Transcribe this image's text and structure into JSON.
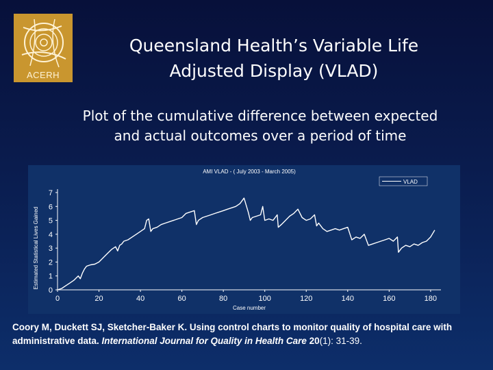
{
  "logo": {
    "text": "ACERH"
  },
  "title": {
    "line1": "Queensland Health’s Variable Life",
    "line2": "Adjusted Display (VLAD)"
  },
  "subtitle": "Plot of the cumulative difference between expected and actual outcomes over a period of time",
  "citation": {
    "authors_title": "Coory M, Duckett SJ, Sketcher-Baker K. Using control charts to monitor quality of hospital care with administrative data. ",
    "journal": "International Journal for Quality in Health Care",
    "volume": "20",
    "issue_pages": "(1): 31-39."
  },
  "colors": {
    "background": "#0a1c4e",
    "chart_bg": "#103168",
    "line": "#ffffff"
  },
  "chart_data": {
    "type": "line",
    "title": "AMI VLAD - ( July 2003 - March 2005)",
    "xlabel": "Case number",
    "ylabel": "Estimated Statistical Lives Gained",
    "xlim": [
      0,
      185
    ],
    "ylim": [
      0,
      7
    ],
    "xticks": [
      0,
      20,
      40,
      60,
      80,
      100,
      120,
      140,
      160,
      180
    ],
    "yticks": [
      0,
      1,
      2,
      3,
      4,
      5,
      6,
      7
    ],
    "legend": "VLAD",
    "legend_position": "top-right",
    "series": [
      {
        "name": "VLAD",
        "x": [
          0,
          2,
          4,
          6,
          8,
          10,
          11,
          12,
          13,
          14,
          16,
          18,
          20,
          22,
          24,
          26,
          28,
          29,
          30,
          31,
          32,
          34,
          36,
          38,
          40,
          42,
          43,
          44,
          45,
          46,
          48,
          50,
          52,
          54,
          56,
          58,
          60,
          62,
          64,
          66,
          67,
          68,
          70,
          72,
          74,
          76,
          78,
          80,
          82,
          84,
          86,
          88,
          90,
          92,
          93,
          94,
          96,
          98,
          99,
          100,
          102,
          104,
          106,
          106.5,
          108,
          110,
          112,
          114,
          116,
          118,
          120,
          122,
          124,
          125,
          126,
          128,
          130,
          132,
          134,
          136,
          138,
          140,
          142,
          144,
          146,
          148,
          150,
          152,
          154,
          156,
          158,
          160,
          162,
          164,
          164.5,
          166,
          168,
          170,
          172,
          174,
          176,
          178,
          180,
          182
        ],
        "y": [
          0,
          0.1,
          0.3,
          0.5,
          0.7,
          1.0,
          0.8,
          1.2,
          1.5,
          1.7,
          1.8,
          1.85,
          2.0,
          2.3,
          2.6,
          2.9,
          3.1,
          2.8,
          3.2,
          3.3,
          3.5,
          3.6,
          3.8,
          4.0,
          4.2,
          4.4,
          5.0,
          5.1,
          4.2,
          4.4,
          4.5,
          4.7,
          4.8,
          4.9,
          5.0,
          5.1,
          5.2,
          5.5,
          5.6,
          5.7,
          4.7,
          5.0,
          5.2,
          5.3,
          5.4,
          5.5,
          5.6,
          5.7,
          5.8,
          5.9,
          6.0,
          6.2,
          6.6,
          5.6,
          5.0,
          5.2,
          5.3,
          5.4,
          6.0,
          5.0,
          5.1,
          5.0,
          5.4,
          4.5,
          4.7,
          5.0,
          5.3,
          5.5,
          5.8,
          5.2,
          5.0,
          5.1,
          5.4,
          4.6,
          4.8,
          4.4,
          4.2,
          4.3,
          4.4,
          4.3,
          4.4,
          4.5,
          3.6,
          3.8,
          3.7,
          4.0,
          3.2,
          3.3,
          3.4,
          3.5,
          3.6,
          3.7,
          3.5,
          3.8,
          2.7,
          3.0,
          3.2,
          3.1,
          3.3,
          3.2,
          3.4,
          3.5,
          3.8,
          4.3
        ]
      }
    ]
  }
}
